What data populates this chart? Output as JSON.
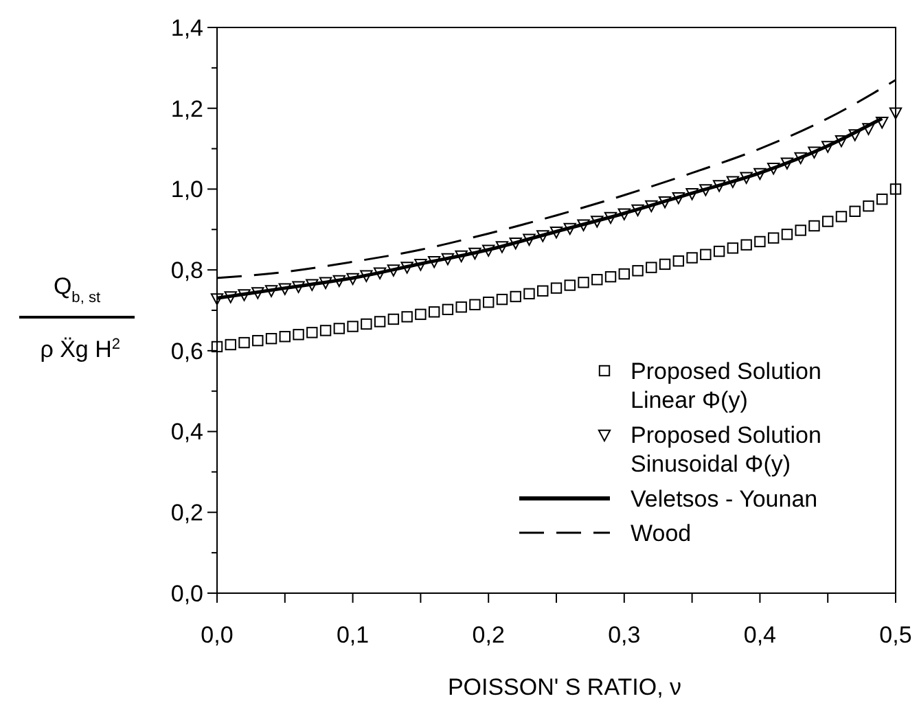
{
  "chart_data": {
    "type": "scatter",
    "xlabel": "POISSON' S RATIO, ν",
    "ylabel": "Q$_{b, st}$ ρ Ẍg H$^{2}$",
    "x": [
      0,
      0.01,
      0.02,
      0.03,
      0.04,
      0.05,
      0.06,
      0.07,
      0.08,
      0.09,
      0.1,
      0.11,
      0.12,
      0.13,
      0.14,
      0.15,
      0.16,
      0.17,
      0.18,
      0.19,
      0.2,
      0.21,
      0.22,
      0.23,
      0.24,
      0.25,
      0.26,
      0.27,
      0.28,
      0.29,
      0.3,
      0.31,
      0.32,
      0.33,
      0.34,
      0.35,
      0.36,
      0.37,
      0.38,
      0.39,
      0.4,
      0.41,
      0.42,
      0.43,
      0.44,
      0.45,
      0.46,
      0.47,
      0.48,
      0.49,
      0.5
    ],
    "series": [
      {
        "name": "Proposed Solution\nLinear Φ(y)",
        "color": "#000000",
        "marker": "square",
        "values": [
          0.61,
          0.615,
          0.62,
          0.625,
          0.63,
          0.635,
          0.64,
          0.645,
          0.65,
          0.655,
          0.66,
          0.666,
          0.672,
          0.678,
          0.684,
          0.69,
          0.696,
          0.702,
          0.708,
          0.714,
          0.72,
          0.727,
          0.734,
          0.741,
          0.748,
          0.755,
          0.762,
          0.769,
          0.776,
          0.783,
          0.79,
          0.798,
          0.806,
          0.814,
          0.822,
          0.83,
          0.838,
          0.846,
          0.854,
          0.862,
          0.87,
          0.879,
          0.888,
          0.898,
          0.909,
          0.92,
          0.932,
          0.945,
          0.958,
          0.975,
          1.0
        ]
      },
      {
        "name": "Proposed Solution\nSinusoidal Φ(y)",
        "color": "#000000",
        "marker": "triangle",
        "values": [
          0.73,
          0.735,
          0.74,
          0.745,
          0.75,
          0.755,
          0.76,
          0.765,
          0.77,
          0.775,
          0.78,
          0.787,
          0.794,
          0.801,
          0.808,
          0.815,
          0.822,
          0.829,
          0.836,
          0.843,
          0.85,
          0.859,
          0.868,
          0.877,
          0.886,
          0.895,
          0.904,
          0.913,
          0.922,
          0.931,
          0.94,
          0.95,
          0.96,
          0.97,
          0.98,
          0.99,
          1.0,
          1.01,
          1.02,
          1.03,
          1.04,
          1.053,
          1.066,
          1.079,
          1.093,
          1.107,
          1.121,
          1.136,
          1.151,
          1.167,
          1.19
        ]
      },
      {
        "name": "Veletsos - Younan",
        "color": "#000000",
        "type": "line",
        "line_style": "solid",
        "x": [
          0,
          0.05,
          0.1,
          0.15,
          0.2,
          0.25,
          0.3,
          0.35,
          0.4,
          0.45,
          0.49
        ],
        "values": [
          0.73,
          0.755,
          0.78,
          0.815,
          0.85,
          0.895,
          0.94,
          0.99,
          1.04,
          1.107,
          1.175
        ]
      },
      {
        "name": "Wood",
        "color": "#000000",
        "type": "line",
        "line_style": "dashed",
        "x": [
          0,
          0.05,
          0.1,
          0.15,
          0.2,
          0.25,
          0.3,
          0.35,
          0.4,
          0.45,
          0.5
        ],
        "values": [
          0.78,
          0.795,
          0.82,
          0.85,
          0.89,
          0.935,
          0.985,
          1.04,
          1.1,
          1.175,
          1.27
        ]
      }
    ],
    "xlim": [
      0,
      0.5
    ],
    "xticks": [
      {
        "value": 0,
        "label": "0,0"
      },
      {
        "value": 0.05,
        "label": null
      },
      {
        "value": 0.1,
        "label": "0,1"
      },
      {
        "value": 0.15,
        "label": null
      },
      {
        "value": 0.2,
        "label": "0,2"
      },
      {
        "value": 0.25,
        "label": null
      },
      {
        "value": 0.3,
        "label": "0,3"
      },
      {
        "value": 0.35,
        "label": null
      },
      {
        "value": 0.4,
        "label": "0,4"
      },
      {
        "value": 0.45,
        "label": null
      },
      {
        "value": 0.5,
        "label": "0,5"
      }
    ],
    "ylim": [
      0,
      1.4
    ],
    "yticks": [
      {
        "value": 0,
        "label": "0,0"
      },
      {
        "value": 0.1,
        "label": null
      },
      {
        "value": 0.2,
        "label": "0,2"
      },
      {
        "value": 0.3,
        "label": null
      },
      {
        "value": 0.4,
        "label": "0,4"
      },
      {
        "value": 0.5,
        "label": null
      },
      {
        "value": 0.6,
        "label": "0,6"
      },
      {
        "value": 0.7,
        "label": null
      },
      {
        "value": 0.8,
        "label": "0,8"
      },
      {
        "value": 0.9,
        "label": null
      },
      {
        "value": 1.0,
        "label": "1,0"
      },
      {
        "value": 1.1,
        "label": null
      },
      {
        "value": 1.2,
        "label": "1,2"
      },
      {
        "value": 1.3,
        "label": null
      },
      {
        "value": 1.4,
        "label": "1,4"
      }
    ],
    "grid": false,
    "legend": "bottom right"
  }
}
